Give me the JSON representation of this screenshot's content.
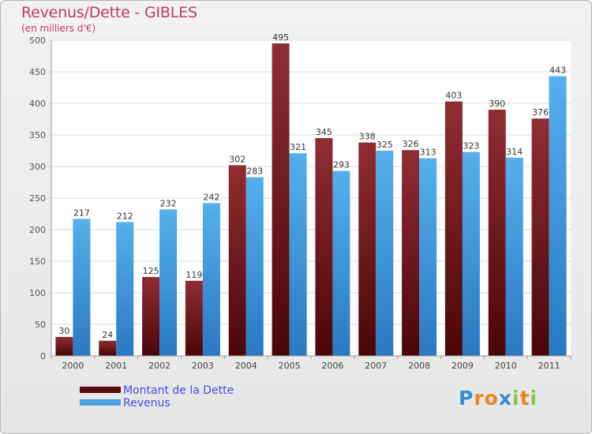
{
  "chart_data": {
    "type": "bar",
    "title": "Revenus/Dette - GIBLES",
    "subtitle": "(en milliers d'€)",
    "categories": [
      "2000",
      "2001",
      "2002",
      "2003",
      "2004",
      "2005",
      "2006",
      "2007",
      "2008",
      "2009",
      "2010",
      "2011"
    ],
    "series": [
      {
        "name": "Montant de la Dette",
        "values": [
          30,
          24,
          125,
          119,
          302,
          495,
          345,
          338,
          326,
          403,
          390,
          376
        ],
        "color": "#7a1f24"
      },
      {
        "name": "Revenus",
        "values": [
          217,
          212,
          232,
          242,
          283,
          321,
          293,
          325,
          313,
          323,
          314,
          443
        ],
        "color": "#4ba3e3"
      }
    ],
    "ylim": [
      0,
      500
    ],
    "yticks": [
      0,
      50,
      100,
      150,
      200,
      250,
      300,
      350,
      400,
      450,
      500
    ],
    "grid": true,
    "legend_position": "bottom-left"
  },
  "legend": [
    {
      "label": "Montant de la Dette",
      "color": "#5a0a0a"
    },
    {
      "label": "Revenus",
      "color": "#4ba3e3"
    }
  ],
  "logo": {
    "letters": [
      "P",
      "r",
      "o",
      "x",
      "i",
      "t",
      "i"
    ],
    "colors": [
      "#2f8fd8",
      "#e8841e",
      "#e8841e",
      "#2f8fd8",
      "#8bc53f",
      "#e8841e",
      "#8bc53f"
    ]
  }
}
